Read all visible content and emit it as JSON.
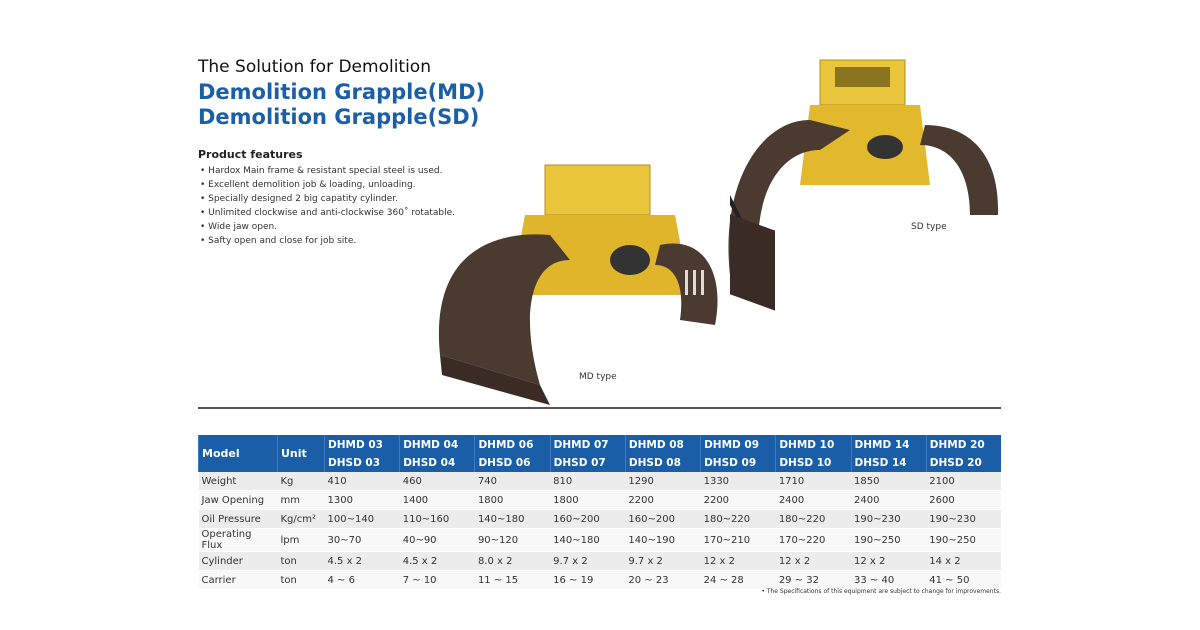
{
  "header": {
    "tagline": "The Solution for Demolition",
    "titles": [
      "Demolition Grapple(MD)",
      "Demolition Grapple(SD)"
    ]
  },
  "features": {
    "title": "Product features",
    "items": [
      "Hardox Main frame & resistant special steel is used.",
      "Excellent demolition job & loading, unloading.",
      "Specially designed 2 big capatity cylinder.",
      "Unlimited clockwise and anti-clockwise 360˚ rotatable.",
      "Wide jaw open.",
      "Safty open and close for job site."
    ]
  },
  "captions": {
    "md": "MD type",
    "sd": "SD type"
  },
  "table": {
    "header": [
      "Model",
      "Unit"
    ],
    "models": [
      [
        "DHMD 03",
        "DHSD 03"
      ],
      [
        "DHMD 04",
        "DHSD 04"
      ],
      [
        "DHMD 06",
        "DHSD 06"
      ],
      [
        "DHMD 07",
        "DHSD 07"
      ],
      [
        "DHMD 08",
        "DHSD 08"
      ],
      [
        "DHMD 09",
        "DHSD 09"
      ],
      [
        "DHMD 10",
        "DHSD 10"
      ],
      [
        "DHMD 14",
        "DHSD 14"
      ],
      [
        "DHMD 20",
        "DHSD 20"
      ]
    ],
    "rows": [
      [
        "Weight",
        "Kg",
        "410",
        "460",
        "740",
        "810",
        "1290",
        "1330",
        "1710",
        "1850",
        "2100"
      ],
      [
        "Jaw Opening",
        "mm",
        "1300",
        "1400",
        "1800",
        "1800",
        "2200",
        "2200",
        "2400",
        "2400",
        "2600"
      ],
      [
        "Oil Pressure",
        "Kg/cm²",
        "100~140",
        "110~160",
        "140~180",
        "160~200",
        "160~200",
        "180~220",
        "180~220",
        "190~230",
        "190~230"
      ],
      [
        "Operating Flux",
        "lpm",
        "30~70",
        "40~90",
        "90~120",
        "140~180",
        "140~190",
        "170~210",
        "170~220",
        "190~250",
        "190~250"
      ],
      [
        "Cylinder",
        "ton",
        "4.5 x 2",
        "4.5 x 2",
        "8.0 x 2",
        "9.7 x 2",
        "9.7 x 2",
        "12 x 2",
        "12 x 2",
        "12 x 2",
        "14 x 2"
      ],
      [
        "Carrier",
        "ton",
        "4 ~ 6",
        "7 ~ 10",
        "11 ~ 15",
        "16 ~ 19",
        "20 ~ 23",
        "24 ~ 28",
        "29 ~ 32",
        "33 ~ 40",
        "41 ~ 50"
      ]
    ]
  },
  "footnote": "• The Specifications of this equipment are subject to change for improvements."
}
